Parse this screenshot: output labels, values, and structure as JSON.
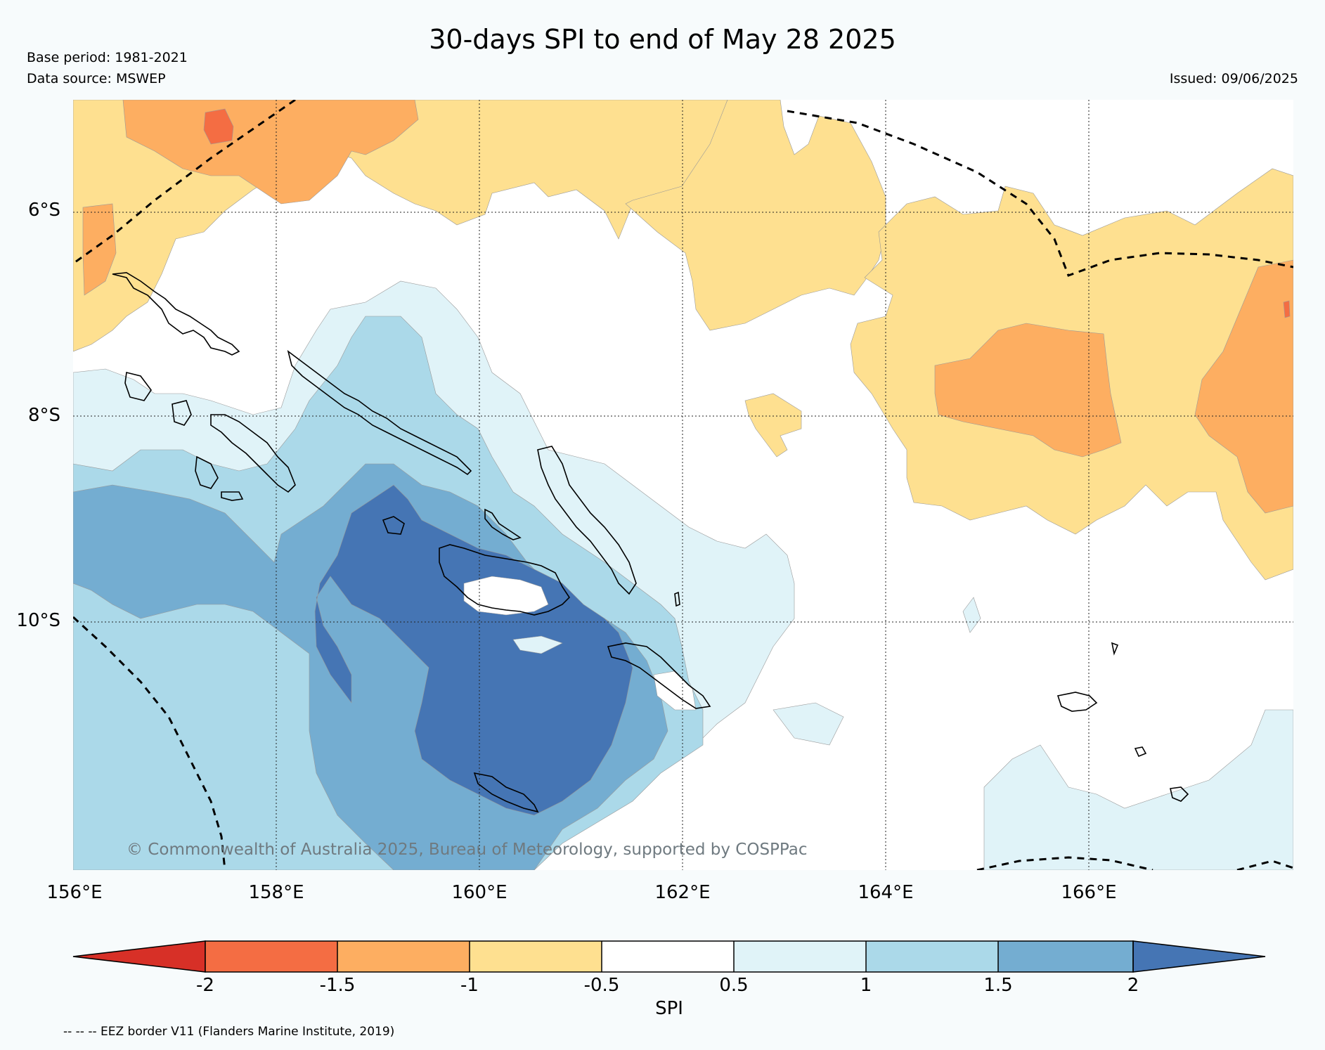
{
  "title": "30-days SPI to end of May 28 2025",
  "base_period": "Base period: 1981-2021",
  "data_source": "Data source: MSWEP",
  "issued": "Issued: 09/06/2025",
  "copyright": "© Commonwealth of Australia 2025, Bureau of Meteorology, supported by COSPPac",
  "legend_note": "-- -- -- EEZ border V11 (Flanders Marine Institute, 2019)",
  "map": {
    "lon_labels": [
      "156°E",
      "158°E",
      "160°E",
      "162°E",
      "164°E",
      "166°E"
    ],
    "lat_labels": [
      "6°S",
      "8°S",
      "10°S"
    ]
  },
  "colorbar": {
    "label": "SPI",
    "ticks": [
      "-2",
      "-1.5",
      "-1",
      "-0.5",
      "0.5",
      "1",
      "1.5",
      "2"
    ],
    "colors": {
      "below_-2": "#d73027",
      "-2_to_-1.5": "#f46d43",
      "-1.5_to_-1": "#fdae61",
      "-1_to_-0.5": "#fee090",
      "-0.5_to_0.5": "#ffffff",
      "0.5_to_1": "#e0f3f8",
      "1_to_1.5": "#abd9e9",
      "1.5_to_2": "#74add1",
      "above_2": "#4575b4"
    }
  }
}
